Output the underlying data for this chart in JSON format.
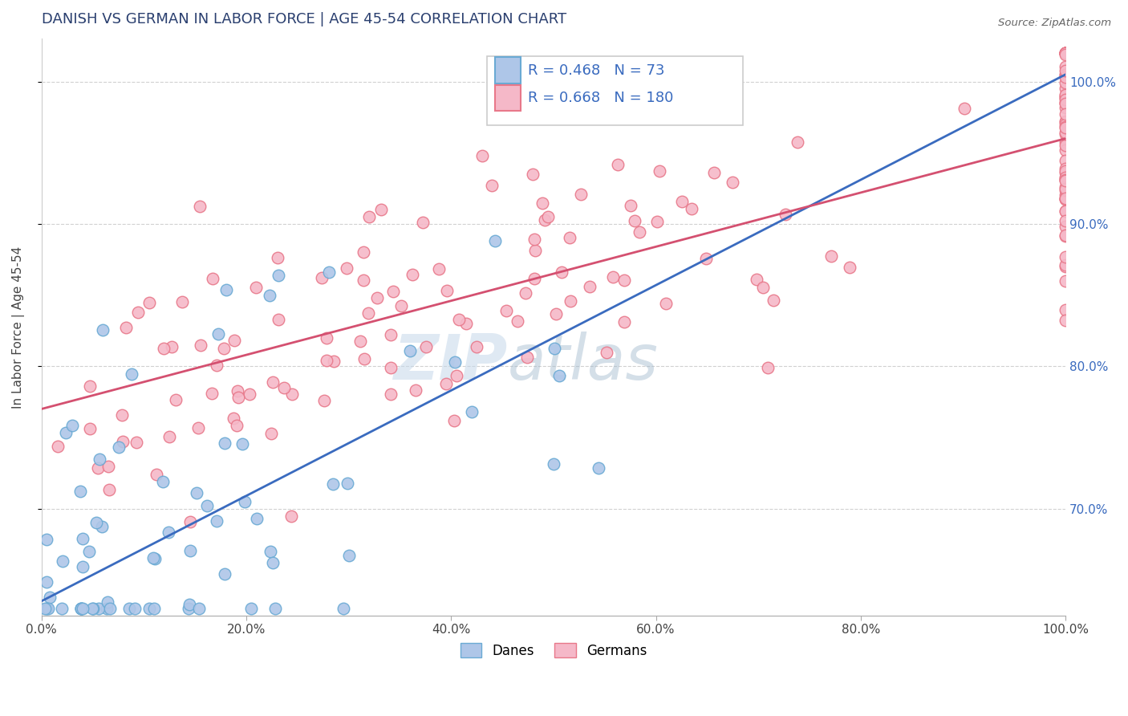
{
  "title": "DANISH VS GERMAN IN LABOR FORCE | AGE 45-54 CORRELATION CHART",
  "source": "Source: ZipAtlas.com",
  "ylabel": "In Labor Force | Age 45-54",
  "xlim": [
    0.0,
    1.0
  ],
  "ylim": [
    0.625,
    1.03
  ],
  "x_ticks": [
    0.0,
    0.2,
    0.4,
    0.6,
    0.8,
    1.0
  ],
  "y_ticks": [
    0.7,
    0.8,
    0.9,
    1.0
  ],
  "danes_color": "#aec6e8",
  "danes_edge_color": "#6aaad4",
  "german_color": "#f5b8c8",
  "german_edge_color": "#e8788a",
  "danes_R": 0.468,
  "danes_N": 73,
  "german_R": 0.668,
  "german_N": 180,
  "danes_line_color": "#3a6bbf",
  "german_line_color": "#d45070",
  "legend_text_color": "#3a6bbf",
  "danes_line_x": [
    0.0,
    1.0
  ],
  "danes_line_y": [
    0.635,
    1.005
  ],
  "german_line_x": [
    0.0,
    1.0
  ],
  "german_line_y": [
    0.77,
    0.96
  ],
  "watermark_zip_color": "#c0d4e8",
  "watermark_atlas_color": "#a0b8cc"
}
